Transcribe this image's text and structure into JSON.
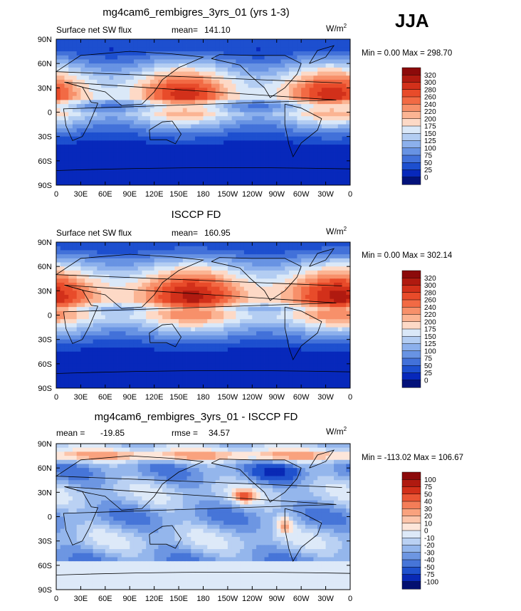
{
  "season": "JJA",
  "chart_data": [
    {
      "type": "heatmap",
      "title": "mg4cam6_rembigres_3yrs_01 (yrs 1-3)",
      "field": "Surface net SW flux",
      "mean_label": "mean=",
      "mean": "141.10",
      "units": "W/m2",
      "units_base": "W/m",
      "units_exp": "2",
      "stats": "Min =    0.00 Max = 298.70",
      "min": 0.0,
      "max": 298.7,
      "colorbar_levels": [
        "320",
        "300",
        "280",
        "260",
        "240",
        "220",
        "200",
        "175",
        "150",
        "125",
        "100",
        "75",
        "50",
        "25",
        "0"
      ],
      "colorbar_colors": [
        "#8c0a0a",
        "#b01a10",
        "#d2301a",
        "#e84b2a",
        "#f26a44",
        "#f7906a",
        "#fbb493",
        "#fdd9c6",
        "#dae8f8",
        "#b3cdf2",
        "#8cb0ec",
        "#6893e3",
        "#4271d9",
        "#1d4fcf",
        "#0728bb",
        "#03127a"
      ],
      "lat_ticks": [
        "90N",
        "60N",
        "30N",
        "0",
        "30S",
        "60S",
        "90S"
      ],
      "lon_ticks": [
        "0",
        "30E",
        "60E",
        "90E",
        "120E",
        "150E",
        "180",
        "150W",
        "120W",
        "90W",
        "60W",
        "30W",
        "0"
      ]
    },
    {
      "type": "heatmap",
      "title": "ISCCP FD",
      "field": "Surface net SW flux",
      "mean_label": "mean=",
      "mean": "160.95",
      "units": "W/m2",
      "units_base": "W/m",
      "units_exp": "2",
      "stats": "Min =    0.00 Max = 302.14",
      "min": 0.0,
      "max": 302.14,
      "colorbar_levels": [
        "320",
        "300",
        "280",
        "260",
        "240",
        "220",
        "200",
        "175",
        "150",
        "125",
        "100",
        "75",
        "50",
        "25",
        "0"
      ],
      "colorbar_colors": [
        "#8c0a0a",
        "#b01a10",
        "#d2301a",
        "#e84b2a",
        "#f26a44",
        "#f7906a",
        "#fbb493",
        "#fdd9c6",
        "#dae8f8",
        "#b3cdf2",
        "#8cb0ec",
        "#6893e3",
        "#4271d9",
        "#1d4fcf",
        "#0728bb",
        "#03127a"
      ],
      "lat_ticks": [
        "90N",
        "60N",
        "30N",
        "0",
        "30S",
        "60S",
        "90S"
      ],
      "lon_ticks": [
        "0",
        "30E",
        "60E",
        "90E",
        "120E",
        "150E",
        "180",
        "150W",
        "120W",
        "90W",
        "60W",
        "30W",
        "0"
      ]
    },
    {
      "type": "heatmap",
      "title": "mg4cam6_rembigres_3yrs_01 - ISCCP FD",
      "mean_label": "mean =",
      "mean": "-19.85",
      "rmse_label": "rmse =",
      "rmse": "34.57",
      "units": "W/m2",
      "units_base": "W/m",
      "units_exp": "2",
      "stats": "Min = -113.02 Max = 106.67",
      "min": -113.02,
      "max": 106.67,
      "colorbar_levels": [
        "100",
        "75",
        "50",
        "40",
        "30",
        "20",
        "10",
        "0",
        "-10",
        "-20",
        "-30",
        "-40",
        "-50",
        "-75",
        "-100"
      ],
      "colorbar_colors": [
        "#8c0a0a",
        "#b01a10",
        "#d2301a",
        "#ea5534",
        "#f47d58",
        "#f9a27e",
        "#fcc5ab",
        "#fde6da",
        "#dde9f8",
        "#bad1f3",
        "#94b6ec",
        "#6d96e2",
        "#4675d8",
        "#1f51cd",
        "#0929b5",
        "#031070"
      ],
      "lat_ticks": [
        "90N",
        "60N",
        "30N",
        "0",
        "30S",
        "60S",
        "90S"
      ],
      "lon_ticks": [
        "0",
        "30E",
        "60E",
        "90E",
        "120E",
        "150E",
        "180",
        "150W",
        "120W",
        "90W",
        "60W",
        "30W",
        "0"
      ]
    }
  ]
}
